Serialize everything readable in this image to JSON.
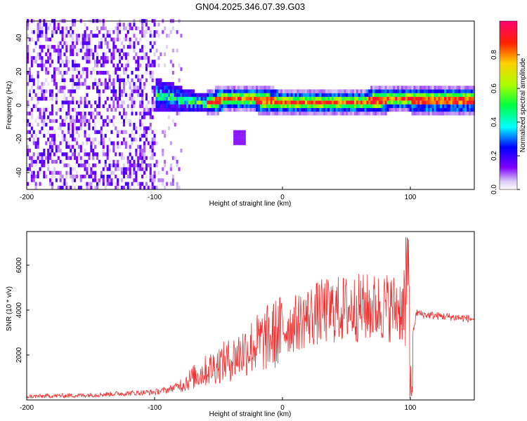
{
  "title": "GN04.2025.346.07.39.G03",
  "chart_data": [
    {
      "type": "heatmap",
      "name": "spectrogram",
      "xlabel": "Height of straight line (km)",
      "ylabel": "Frequency (Hz)",
      "xlim": [
        -200,
        150
      ],
      "ylim": [
        -50,
        50
      ],
      "xticks": [
        -200,
        -100,
        0,
        100
      ],
      "yticks": [
        -40,
        -20,
        0,
        20,
        40
      ],
      "colorbar": {
        "label": "Normalized spectral amplitude",
        "range": [
          0.0,
          1.0
        ],
        "ticks": [
          "0.0",
          "0.2",
          "0.4",
          "0.6",
          "0.8"
        ]
      },
      "ridge": {
        "x": [
          -105,
          -90,
          -80,
          -70,
          -60,
          -50,
          -40,
          -30,
          -20,
          0,
          20,
          40,
          60,
          80,
          95,
          100,
          150
        ],
        "y": [
          5,
          4,
          2,
          1,
          0,
          2,
          3,
          3,
          2,
          1,
          1,
          1,
          1,
          2,
          3,
          2,
          2
        ]
      }
    },
    {
      "type": "line",
      "name": "snr",
      "xlabel": "Height of straight line (km)",
      "ylabel": "SNR (10 * v/v)",
      "xlim": [
        -200,
        150
      ],
      "ylim": [
        0,
        7500
      ],
      "xticks": [
        -200,
        -100,
        0,
        100
      ],
      "yticks": [
        2000,
        4000,
        6000
      ],
      "color": "#ee3333",
      "envelope": {
        "x": [
          -200,
          -180,
          -160,
          -140,
          -120,
          -100,
          -90,
          -80,
          -70,
          -60,
          -50,
          -40,
          -30,
          -20,
          -10,
          0,
          10,
          20,
          30,
          40,
          50,
          60,
          70,
          80,
          90,
          95,
          98,
          100,
          102,
          105,
          110,
          120,
          130,
          140,
          150
        ],
        "y": [
          150,
          180,
          200,
          250,
          300,
          350,
          450,
          650,
          1000,
          1300,
          1600,
          1800,
          2200,
          2500,
          2800,
          3100,
          3400,
          3700,
          3900,
          4000,
          4050,
          4100,
          4100,
          4150,
          4100,
          4000,
          3500,
          1500,
          3000,
          3900,
          3800,
          3750,
          3700,
          3650,
          3600
        ]
      }
    }
  ]
}
